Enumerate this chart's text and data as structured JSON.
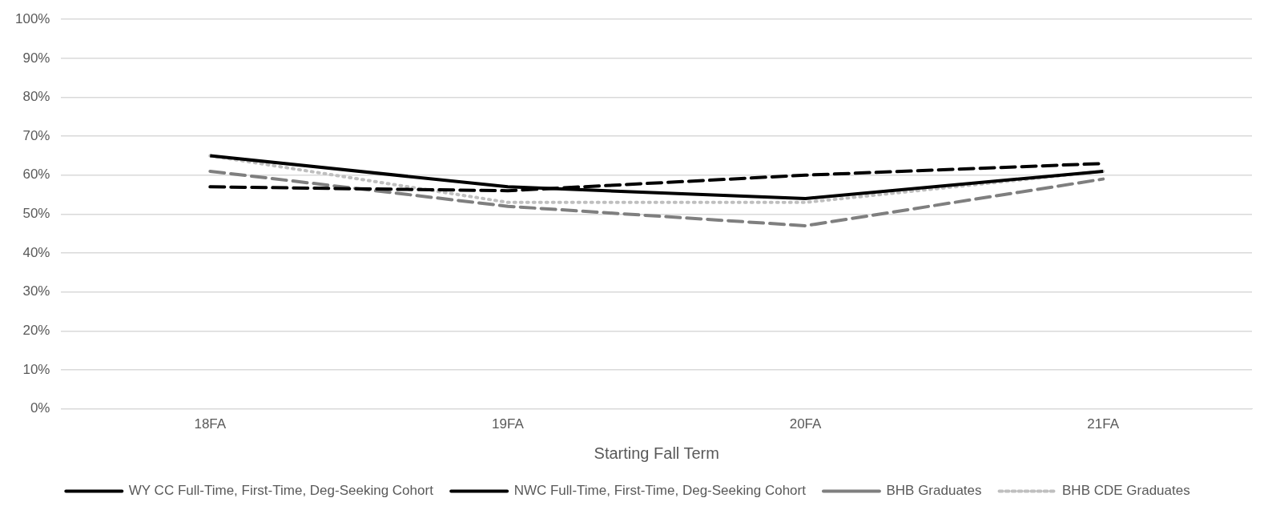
{
  "chart_data": {
    "type": "line",
    "xlabel": "Starting Fall Term",
    "categories": [
      "18FA",
      "19FA",
      "20FA",
      "21FA"
    ],
    "series": [
      {
        "name": "WY CC Full-Time, First-Time, Deg-Seeking Cohort",
        "color": "#000000",
        "line_style": "dashed",
        "values": [
          57,
          56,
          60,
          63
        ]
      },
      {
        "name": "NWC Full-Time, First-Time, Deg-Seeking Cohort",
        "color": "#000000",
        "line_style": "solid",
        "values": [
          65,
          57,
          54,
          61
        ]
      },
      {
        "name": "BHB Graduates",
        "color": "#7f7f7f",
        "line_style": "dashed",
        "values": [
          61,
          52,
          47,
          59
        ]
      },
      {
        "name": "BHB CDE Graduates",
        "color": "#bfbfbf",
        "line_style": "dotted",
        "values": [
          65,
          53,
          53,
          61
        ]
      }
    ],
    "ylim": [
      0,
      100
    ],
    "yticks": [
      {
        "value": 0,
        "label": "0%"
      },
      {
        "value": 10,
        "label": "10%"
      },
      {
        "value": 20,
        "label": "20%"
      },
      {
        "value": 30,
        "label": "30%"
      },
      {
        "value": 40,
        "label": "40%"
      },
      {
        "value": 50,
        "label": "50%"
      },
      {
        "value": 60,
        "label": "60%"
      },
      {
        "value": 70,
        "label": "70%"
      },
      {
        "value": 80,
        "label": "80%"
      },
      {
        "value": 90,
        "label": "90%"
      },
      {
        "value": 100,
        "label": "100%"
      }
    ],
    "grid": "y",
    "legend": "bottom",
    "marker": "none"
  }
}
